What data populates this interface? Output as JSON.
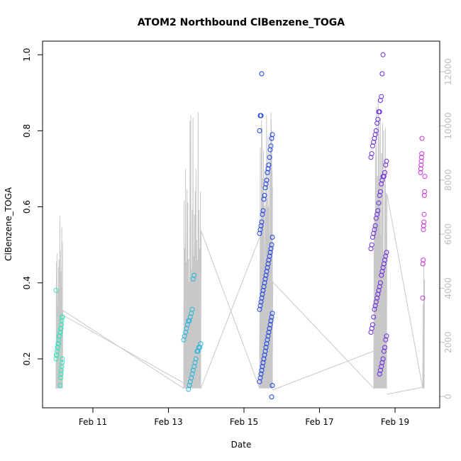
{
  "chart_data": {
    "type": "scatter",
    "title": "ATOM2 Northbound ClBenzene_TOGA",
    "xlabel": "Date",
    "ylabel": "ClBenzene_TOGA",
    "x_ticks": [
      {
        "day": 11,
        "label": "Feb 11"
      },
      {
        "day": 13,
        "label": "Feb 13"
      },
      {
        "day": 15,
        "label": "Feb 15"
      },
      {
        "day": 17,
        "label": "Feb 17"
      },
      {
        "day": 19,
        "label": "Feb 19"
      }
    ],
    "xlim": [
      "Feb 10",
      "Feb 20"
    ],
    "ylim": [
      0.1,
      1.0
    ],
    "y_ticks": [
      0.2,
      0.4,
      0.6,
      0.8,
      1.0
    ],
    "y_tick_labels": [
      "0.2",
      "0.4",
      "0.6",
      "0.8",
      "1.0"
    ],
    "y2_ticks": [
      0,
      2000,
      4000,
      6000,
      8000,
      10000,
      12000
    ],
    "y2_tick_labels": [
      "0",
      "2000",
      "4000",
      "6000",
      "8000",
      "10000",
      "12000"
    ],
    "y2lim": [
      0,
      12000
    ],
    "secondary_series_color": "#bdbdbd",
    "series": [
      {
        "color": "#2ee6c0",
        "points": [
          {
            "x": "Feb 10",
            "y": [
              0.38,
              0.31,
              0.31,
              0.3,
              0.29,
              0.28,
              0.28,
              0.27,
              0.27,
              0.26,
              0.26,
              0.25,
              0.24,
              0.24,
              0.23,
              0.23,
              0.22,
              0.21,
              0.21,
              0.2,
              0.2,
              0.19,
              0.18,
              0.17,
              0.16,
              0.15,
              0.13
            ]
          }
        ]
      },
      {
        "color": "#20b6e0",
        "points": [
          {
            "x": "Feb 13",
            "y": [
              0.42,
              0.41,
              0.33,
              0.32,
              0.31,
              0.3,
              0.3,
              0.29,
              0.28,
              0.27,
              0.26,
              0.25,
              0.24,
              0.23,
              0.23,
              0.22,
              0.22,
              0.2,
              0.19,
              0.18,
              0.17,
              0.16,
              0.15,
              0.14,
              0.13,
              0.12
            ]
          }
        ]
      },
      {
        "color": "#1a3fe6",
        "points": [
          {
            "x": "Feb 15",
            "y": [
              0.95,
              0.84,
              0.84,
              0.8,
              0.79,
              0.78,
              0.76,
              0.75,
              0.73,
              0.71,
              0.7,
              0.69,
              0.67,
              0.66,
              0.65,
              0.63,
              0.62,
              0.59,
              0.58,
              0.56,
              0.55,
              0.54,
              0.53,
              0.52,
              0.5,
              0.49,
              0.48,
              0.47,
              0.46,
              0.45,
              0.44,
              0.43,
              0.42,
              0.41,
              0.4,
              0.39,
              0.38,
              0.37,
              0.36,
              0.35,
              0.34,
              0.33,
              0.32,
              0.31,
              0.3,
              0.29,
              0.28,
              0.27,
              0.26,
              0.25,
              0.24,
              0.23,
              0.22,
              0.21,
              0.2,
              0.19,
              0.18,
              0.17,
              0.16,
              0.15,
              0.14,
              0.13,
              0.1
            ]
          }
        ]
      },
      {
        "color": "#6a28e0",
        "points": [
          {
            "x": "Feb 18",
            "y": [
              1.0,
              0.95,
              0.89,
              0.88,
              0.85,
              0.85,
              0.83,
              0.82,
              0.8,
              0.79,
              0.78,
              0.77,
              0.76,
              0.74,
              0.73,
              0.72,
              0.71,
              0.69,
              0.68,
              0.68,
              0.67,
              0.66,
              0.64,
              0.63,
              0.61,
              0.59,
              0.58,
              0.57,
              0.55,
              0.54,
              0.53,
              0.52,
              0.5,
              0.49,
              0.48,
              0.47,
              0.46,
              0.45,
              0.44,
              0.43,
              0.42,
              0.4,
              0.39,
              0.38,
              0.37,
              0.36,
              0.35,
              0.34,
              0.33,
              0.31,
              0.29,
              0.28,
              0.27,
              0.26,
              0.25,
              0.23,
              0.22,
              0.2,
              0.19,
              0.18,
              0.17,
              0.16
            ]
          }
        ]
      },
      {
        "color": "#cc33d9",
        "points": [
          {
            "x": "Feb 19",
            "y": [
              0.78,
              0.74,
              0.73,
              0.72,
              0.71,
              0.7,
              0.69,
              0.68,
              0.64,
              0.63,
              0.58,
              0.56,
              0.55,
              0.54,
              0.46,
              0.45,
              0.36
            ]
          }
        ]
      }
    ]
  }
}
